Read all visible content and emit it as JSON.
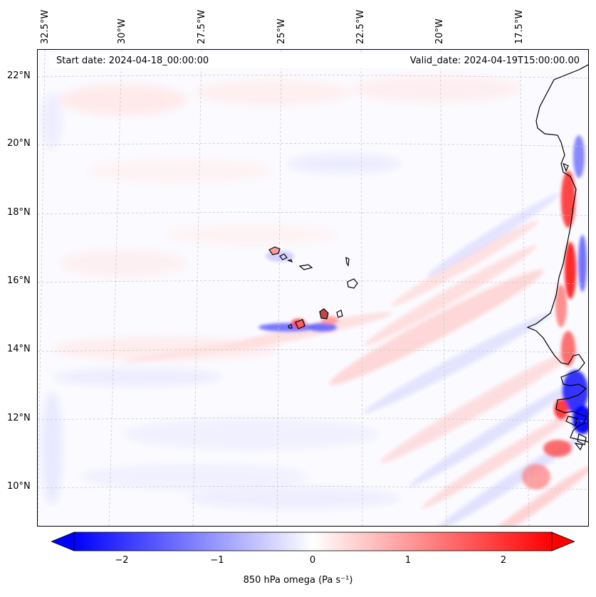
{
  "figure": {
    "start_date": "Start date: 2024-04-18_00:00:00",
    "valid_date": "Valid_date: 2024-04-19T15:00:00.00"
  },
  "longitude_labels": [
    "32.5°W",
    "30°W",
    "27.5°W",
    "25°W",
    "22.5°W",
    "20°W",
    "17.5°W"
  ],
  "latitude_labels": [
    "22°N",
    "20°N",
    "18°N",
    "16°N",
    "14°N",
    "12°N",
    "10°N"
  ],
  "colorbar": {
    "label": "850 hPa omega (Pa s⁻¹)",
    "ticks": [
      "−2",
      "−1",
      "0",
      "1",
      "2"
    ],
    "range": [
      -2.5,
      2.5
    ],
    "colormap": "bwr",
    "extend": "both"
  },
  "colors": {
    "negative": "#0000ff",
    "neutral": "#ffffff",
    "positive": "#ff0000",
    "coastline": "#000000",
    "gridline": "#c8c8c8"
  }
}
